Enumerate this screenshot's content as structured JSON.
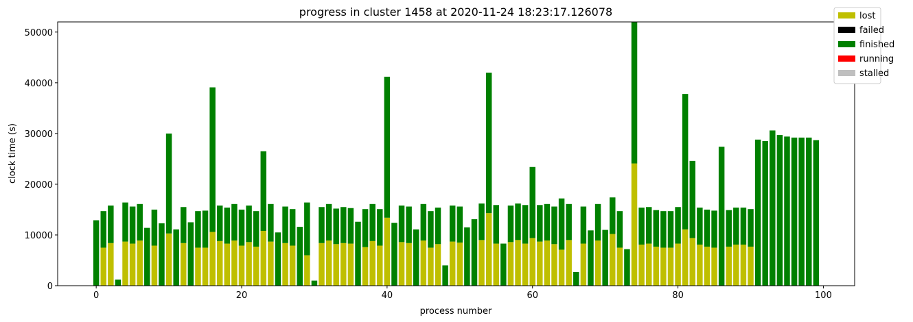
{
  "chart_data": {
    "type": "stacked_bar",
    "title": "progress in cluster 1458 at 2020-11-24 18:23:17.126078",
    "x_label": "process number",
    "y_label": "clock time (s)",
    "x": [
      0,
      1,
      2,
      3,
      4,
      5,
      6,
      7,
      8,
      9,
      10,
      11,
      12,
      13,
      14,
      15,
      16,
      17,
      18,
      19,
      20,
      21,
      22,
      23,
      24,
      25,
      26,
      27,
      28,
      29,
      30,
      31,
      32,
      33,
      34,
      35,
      36,
      37,
      38,
      39,
      40,
      41,
      42,
      43,
      44,
      45,
      46,
      47,
      48,
      49,
      50,
      51,
      52,
      53,
      54,
      55,
      56,
      57,
      58,
      59,
      60,
      61,
      62,
      63,
      64,
      65,
      66,
      67,
      68,
      69,
      70,
      71,
      72,
      73,
      74,
      75,
      76,
      77,
      78,
      79,
      80,
      81,
      82,
      83,
      84,
      85,
      86,
      87,
      88,
      89,
      90,
      91,
      92,
      93,
      94,
      95,
      96,
      97,
      98,
      99
    ],
    "xlim": [
      -5.3,
      104.3
    ],
    "xticks": [
      0,
      20,
      40,
      60,
      80,
      100
    ],
    "ylim": [
      0,
      52000
    ],
    "yticks": [
      0,
      10000,
      20000,
      30000,
      40000,
      50000
    ],
    "legend": "upper right",
    "series": [
      {
        "name": "lost",
        "color": "#bfbf00",
        "values": [
          0,
          7500,
          8400,
          0,
          8700,
          8300,
          8900,
          0,
          7900,
          0,
          10300,
          0,
          8400,
          0,
          7500,
          7500,
          10600,
          8800,
          8300,
          8900,
          7900,
          8600,
          7700,
          10800,
          8700,
          0,
          8400,
          7900,
          0,
          6000,
          0,
          8400,
          8900,
          8200,
          8400,
          8300,
          0,
          7600,
          8800,
          7900,
          13400,
          0,
          8600,
          8400,
          0,
          8900,
          7500,
          8200,
          0,
          8700,
          8500,
          0,
          0,
          9000,
          14300,
          8300,
          0,
          8600,
          9000,
          8300,
          9400,
          8700,
          8900,
          8200,
          7100,
          9000,
          0,
          8300,
          0,
          8900,
          0,
          10200,
          7500,
          0,
          24100,
          8100,
          8300,
          7700,
          7500,
          7500,
          8300,
          11100,
          9400,
          8100,
          7700,
          7500,
          0,
          7700,
          8100,
          8100,
          7700,
          0,
          0,
          0,
          0,
          0,
          0,
          0,
          0,
          0
        ]
      },
      {
        "name": "failed",
        "color": "#000000",
        "values": [
          0,
          0,
          0,
          0,
          0,
          0,
          0,
          0,
          0,
          0,
          0,
          0,
          0,
          0,
          0,
          0,
          0,
          0,
          0,
          0,
          0,
          0,
          0,
          0,
          0,
          0,
          0,
          0,
          0,
          0,
          0,
          0,
          0,
          0,
          0,
          0,
          0,
          0,
          0,
          0,
          0,
          0,
          0,
          0,
          0,
          0,
          0,
          0,
          0,
          0,
          0,
          0,
          0,
          0,
          0,
          0,
          0,
          0,
          0,
          0,
          0,
          0,
          0,
          0,
          0,
          0,
          0,
          0,
          0,
          0,
          0,
          0,
          0,
          0,
          0,
          0,
          0,
          0,
          0,
          0,
          0,
          0,
          0,
          0,
          0,
          0,
          0,
          0,
          0,
          0,
          0,
          0,
          0,
          0,
          0,
          0,
          0,
          0,
          0,
          0
        ]
      },
      {
        "name": "finished",
        "color": "#008000",
        "values": [
          12900,
          7200,
          7400,
          1200,
          7700,
          7300,
          7200,
          11400,
          7100,
          12300,
          19700,
          11100,
          7100,
          12500,
          7200,
          7300,
          28500,
          7000,
          7100,
          7200,
          7100,
          7200,
          7000,
          15700,
          7400,
          10500,
          7200,
          7200,
          11600,
          10400,
          1000,
          7100,
          7200,
          7000,
          7100,
          7000,
          12600,
          7500,
          7300,
          7200,
          27800,
          12400,
          7200,
          7200,
          11100,
          7200,
          7200,
          7200,
          4000,
          7100,
          7100,
          11500,
          13100,
          7200,
          27700,
          7600,
          8300,
          7200,
          7200,
          7600,
          14000,
          7200,
          7200,
          7400,
          10100,
          7100,
          2700,
          7300,
          10900,
          7200,
          11000,
          7200,
          7200,
          7200,
          27900,
          7300,
          7200,
          7200,
          7200,
          7200,
          7200,
          26700,
          15200,
          7300,
          7300,
          7300,
          27400,
          7200,
          7300,
          7300,
          7400,
          28800,
          28500,
          30600,
          29700,
          29400,
          29200,
          29200,
          29200,
          28700
        ]
      },
      {
        "name": "running",
        "color": "#ff0000",
        "values": [
          0,
          0,
          0,
          0,
          0,
          0,
          0,
          0,
          0,
          0,
          0,
          0,
          0,
          0,
          0,
          0,
          0,
          0,
          0,
          0,
          0,
          0,
          0,
          0,
          0,
          0,
          0,
          0,
          0,
          0,
          0,
          0,
          0,
          0,
          0,
          0,
          0,
          0,
          0,
          0,
          0,
          0,
          0,
          0,
          0,
          0,
          0,
          0,
          0,
          0,
          0,
          0,
          0,
          0,
          0,
          0,
          0,
          0,
          0,
          0,
          0,
          0,
          0,
          0,
          0,
          0,
          0,
          0,
          0,
          0,
          0,
          0,
          0,
          0,
          0,
          0,
          0,
          0,
          0,
          0,
          0,
          0,
          0,
          0,
          0,
          0,
          0,
          0,
          0,
          0,
          0,
          0,
          0,
          0,
          0,
          0,
          0,
          0,
          0,
          0
        ]
      },
      {
        "name": "stalled",
        "color": "#bfbfbf",
        "values": [
          0,
          0,
          0,
          0,
          0,
          0,
          0,
          0,
          0,
          0,
          0,
          0,
          0,
          0,
          0,
          0,
          0,
          0,
          0,
          0,
          0,
          0,
          0,
          0,
          0,
          0,
          0,
          0,
          0,
          0,
          0,
          0,
          0,
          0,
          0,
          0,
          0,
          0,
          0,
          0,
          0,
          0,
          0,
          0,
          0,
          0,
          0,
          0,
          0,
          0,
          0,
          0,
          0,
          0,
          0,
          0,
          0,
          0,
          0,
          0,
          0,
          0,
          0,
          0,
          0,
          0,
          0,
          0,
          0,
          0,
          0,
          0,
          0,
          0,
          0,
          0,
          0,
          0,
          0,
          0,
          0,
          0,
          0,
          0,
          0,
          0,
          0,
          0,
          0,
          0,
          0,
          0,
          0,
          0,
          0,
          0,
          0,
          0,
          0,
          0
        ]
      }
    ]
  }
}
